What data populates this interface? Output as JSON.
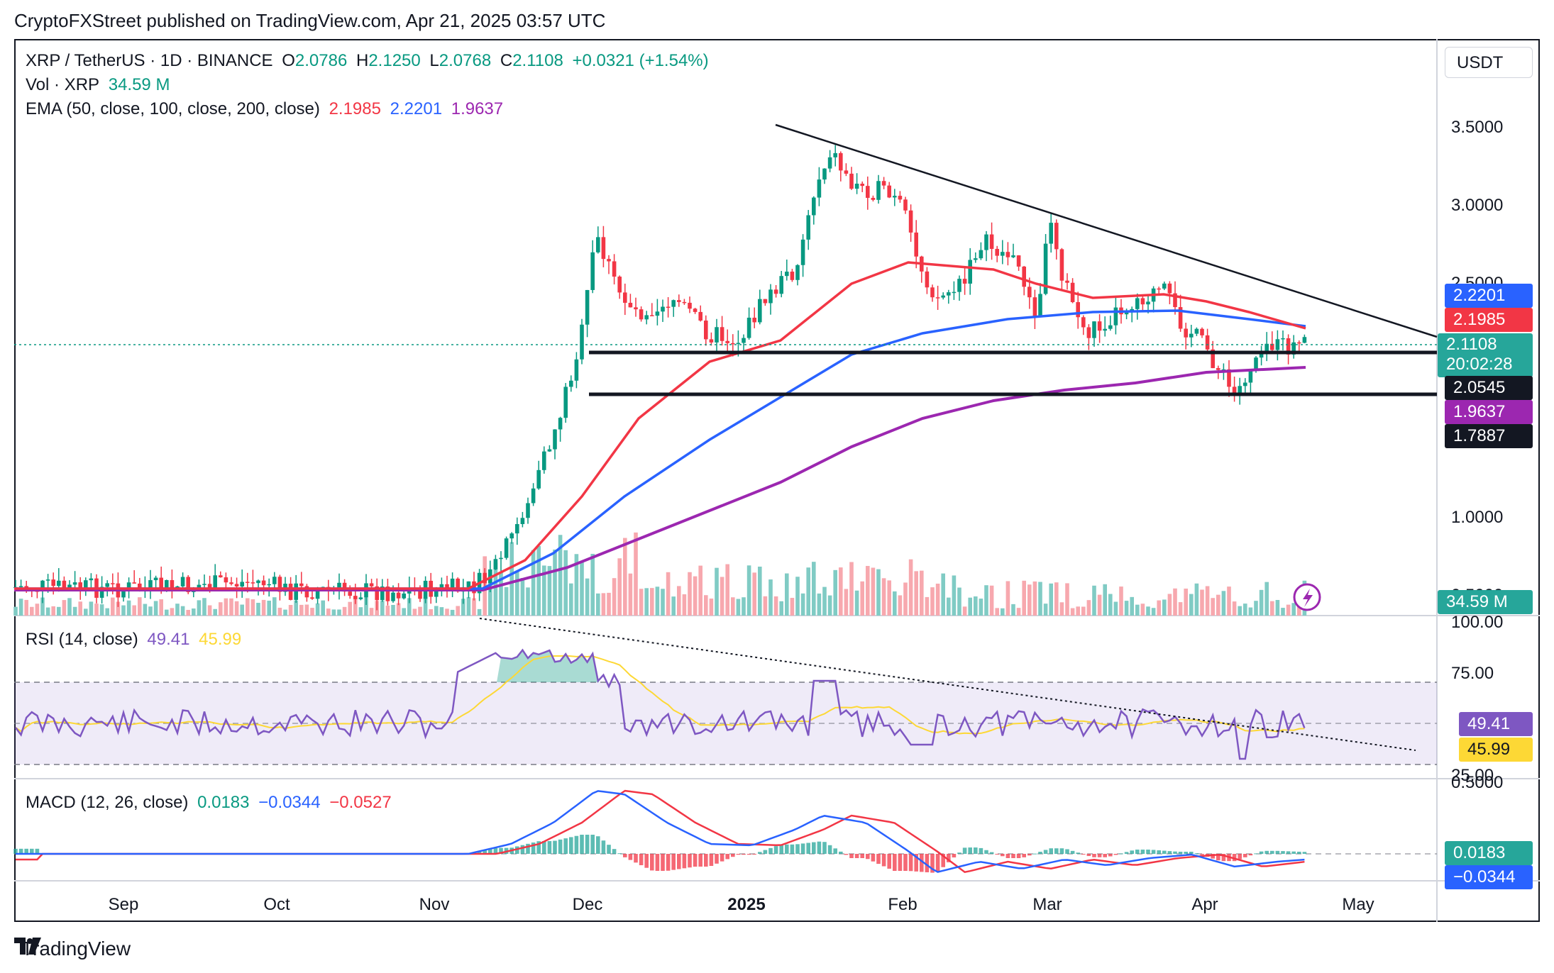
{
  "header": {
    "published": "CryptoFXStreet published on TradingView.com, Apr 21, 2025 03:57 UTC"
  },
  "symbol": {
    "title": "XRP / TetherUS · 1D · BINANCE",
    "o_label": "O",
    "o": "2.0786",
    "h_label": "H",
    "h": "2.1250",
    "l_label": "L",
    "l": "2.0768",
    "c_label": "C",
    "c": "2.1108",
    "change": "+0.0321 (+1.54%)"
  },
  "volume_legend": {
    "label": "Vol · XRP",
    "value": "34.59 M"
  },
  "ema_legend": {
    "label": "EMA (50, close, 100, close, 200, close)",
    "v50": "2.1985",
    "v100": "2.2201",
    "v200": "1.9637"
  },
  "rsi_legend": {
    "label": "RSI (14, close)",
    "rsi": "49.41",
    "ma": "45.99"
  },
  "macd_legend": {
    "label": "MACD (12, 26, close)",
    "hist": "0.0183",
    "macd": "−0.0344",
    "signal": "−0.0527"
  },
  "currency": "USDT",
  "price_axis": [
    "3.5000",
    "3.0000",
    "2.5000",
    "1.0000",
    "0.5000"
  ],
  "rsi_axis": [
    "100.00",
    "75.00",
    "25.00"
  ],
  "macd_axis": [
    "0.5000"
  ],
  "tags": {
    "ema100": "2.2201",
    "ema50": "2.1985",
    "last": "2.1108",
    "countdown": "20:02:28",
    "level1": "2.0545",
    "ema200": "1.9637",
    "level2": "1.7887",
    "volume": "34.59 M",
    "rsi": "49.41",
    "rsi_ma": "45.99",
    "macd_hist": "0.0183",
    "macd": "−0.0344"
  },
  "time_axis": [
    "Sep",
    "Oct",
    "Nov",
    "Dec",
    "2025",
    "Feb",
    "Mar",
    "Apr",
    "May"
  ],
  "footer": {
    "brand": "TradingView"
  },
  "colors": {
    "up": "#089981",
    "down": "#f23645",
    "ema50": "#f23645",
    "ema100": "#2962ff",
    "ema200": "#9c27b0",
    "rsi": "#7e57c2",
    "rsi_ma": "#fdd835",
    "macd": "#2962ff",
    "signal": "#f23645"
  },
  "icons": {
    "lightning": "lightning-icon",
    "logo": "tradingview-logo-icon"
  }
}
